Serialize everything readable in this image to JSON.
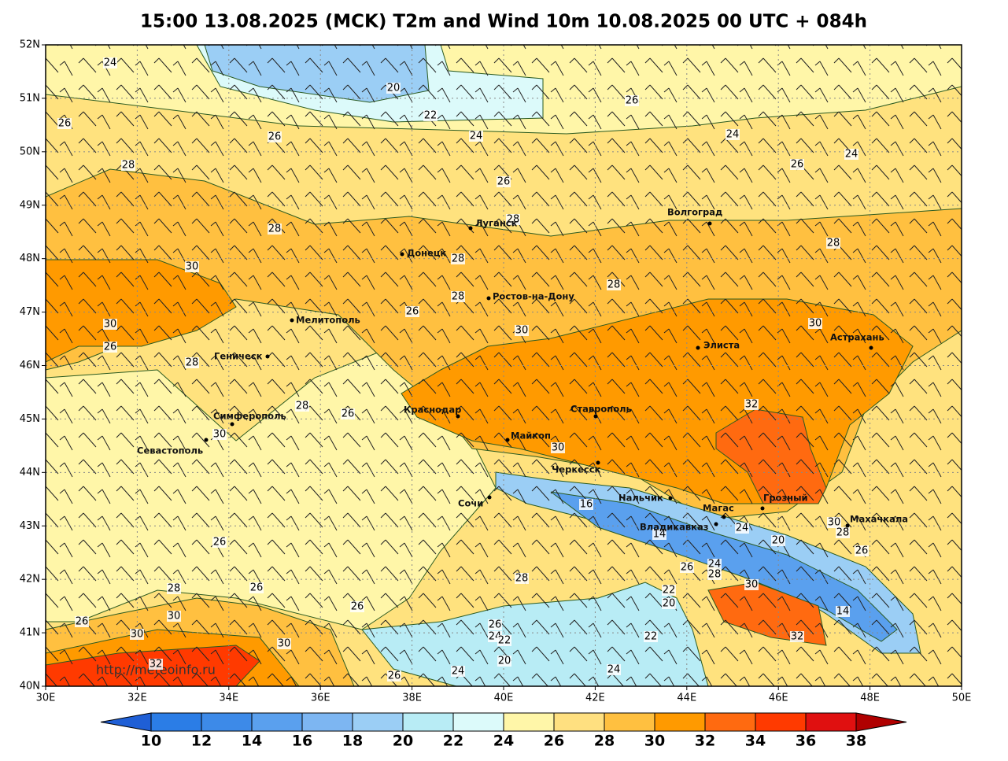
{
  "title": "15:00 13.08.2025 (MCK) T2m and Wind 10m 10.08.2025 00 UTC + 084h",
  "map": {
    "xlim": [
      30,
      50
    ],
    "ylim": [
      40,
      52
    ],
    "xticks": [
      {
        "value": 30,
        "label": "30E"
      },
      {
        "value": 32,
        "label": "32E"
      },
      {
        "value": 34,
        "label": "34E"
      },
      {
        "value": 36,
        "label": "36E"
      },
      {
        "value": 38,
        "label": "38E"
      },
      {
        "value": 40,
        "label": "40E"
      },
      {
        "value": 42,
        "label": "42E"
      },
      {
        "value": 44,
        "label": "44E"
      },
      {
        "value": 46,
        "label": "46E"
      },
      {
        "value": 48,
        "label": "48E"
      },
      {
        "value": 50,
        "label": "50E"
      }
    ],
    "yticks": [
      {
        "value": 40,
        "label": "40N"
      },
      {
        "value": 41,
        "label": "41N"
      },
      {
        "value": 42,
        "label": "42N"
      },
      {
        "value": 43,
        "label": "43N"
      },
      {
        "value": 44,
        "label": "44N"
      },
      {
        "value": 45,
        "label": "45N"
      },
      {
        "value": 46,
        "label": "46N"
      },
      {
        "value": 47,
        "label": "47N"
      },
      {
        "value": 48,
        "label": "48N"
      },
      {
        "value": 49,
        "label": "49N"
      },
      {
        "value": 50,
        "label": "50N"
      },
      {
        "value": 51,
        "label": "51N"
      },
      {
        "value": 52,
        "label": "52N"
      }
    ],
    "cities": [
      "Луганск",
      "Донецк",
      "Волгоград",
      "Ростов-на-Дону",
      "Мелитополь",
      "Элиста",
      "Астрахань",
      "Геническ",
      "Краснодар",
      "Ставрополь",
      "Симферополь",
      "Майкоп",
      "Севастополь",
      "Черкесск",
      "Сочи",
      "Нальчик",
      "Грозный",
      "Магас",
      "Махачкала",
      "Владикавказ"
    ],
    "contour_labels": [
      24,
      20,
      22,
      26,
      26,
      26,
      24,
      24,
      24,
      26,
      28,
      26,
      28,
      28,
      28,
      28,
      30,
      28,
      28,
      30,
      26,
      30,
      30,
      26,
      28,
      32,
      28,
      26,
      30,
      30,
      16,
      14,
      20,
      26,
      28,
      26,
      28,
      26,
      30,
      26,
      30,
      32,
      30,
      26,
      22,
      20,
      30,
      14,
      32,
      22,
      26,
      24,
      22,
      20,
      24,
      26,
      24,
      24,
      28,
      26,
      30,
      28,
      24
    ],
    "watermark": "http://meteoinfo.ru"
  },
  "colorbar": {
    "levels": [
      10,
      12,
      14,
      16,
      18,
      20,
      22,
      24,
      26,
      28,
      30,
      32,
      34,
      36,
      38
    ],
    "colors": [
      "#1f5fd6",
      "#2b7de6",
      "#3d8ae8",
      "#5aa0ee",
      "#7db6f2",
      "#9bcef5",
      "#b8ecf5",
      "#dcfafa",
      "#fff6a8",
      "#ffe080",
      "#ffc040",
      "#ff9a00",
      "#ff6a10",
      "#ff3a00",
      "#e01010",
      "#b00000"
    ]
  }
}
